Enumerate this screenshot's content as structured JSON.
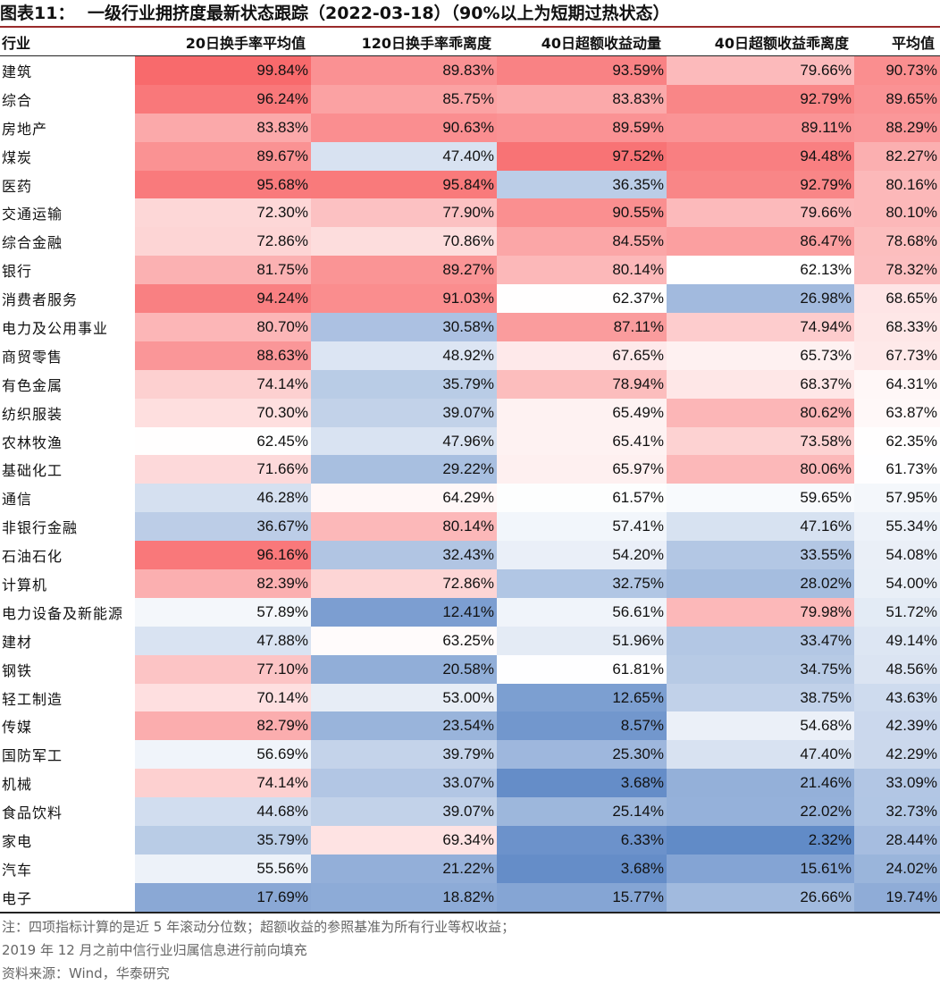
{
  "header": {
    "figure_label": "图表11：",
    "title": "一级行业拥挤度最新状态跟踪（2022-03-18）（90%以上为短期过热状态）"
  },
  "chart_data": {
    "type": "table",
    "title": "一级行业拥挤度最新状态跟踪（2022-03-18）（90%以上为短期过热状态）",
    "columns": [
      "行业",
      "20日换手率平均值",
      "120日换手率乖离度",
      "40日超额收益动量",
      "40日超额收益乖离度",
      "平均值"
    ],
    "rows": [
      [
        "建筑",
        99.84,
        89.83,
        93.59,
        79.66,
        90.73
      ],
      [
        "综合",
        96.24,
        85.75,
        83.83,
        92.79,
        89.65
      ],
      [
        "房地产",
        83.83,
        90.63,
        89.59,
        89.11,
        88.29
      ],
      [
        "煤炭",
        89.67,
        47.4,
        97.52,
        94.48,
        82.27
      ],
      [
        "医药",
        95.68,
        95.84,
        36.35,
        92.79,
        80.16
      ],
      [
        "交通运输",
        72.3,
        77.9,
        90.55,
        79.66,
        80.1
      ],
      [
        "综合金融",
        72.86,
        70.86,
        84.55,
        86.47,
        78.68
      ],
      [
        "银行",
        81.75,
        89.27,
        80.14,
        62.13,
        78.32
      ],
      [
        "消费者服务",
        94.24,
        91.03,
        62.37,
        26.98,
        68.65
      ],
      [
        "电力及公用事业",
        80.7,
        30.58,
        87.11,
        74.94,
        68.33
      ],
      [
        "商贸零售",
        88.63,
        48.92,
        67.65,
        65.73,
        67.73
      ],
      [
        "有色金属",
        74.14,
        35.79,
        78.94,
        68.37,
        64.31
      ],
      [
        "纺织服装",
        70.3,
        39.07,
        65.49,
        80.62,
        63.87
      ],
      [
        "农林牧渔",
        62.45,
        47.96,
        65.41,
        73.58,
        62.35
      ],
      [
        "基础化工",
        71.66,
        29.22,
        65.97,
        80.06,
        61.73
      ],
      [
        "通信",
        46.28,
        64.29,
        61.57,
        59.65,
        57.95
      ],
      [
        "非银行金融",
        36.67,
        80.14,
        57.41,
        47.16,
        55.34
      ],
      [
        "石油石化",
        96.16,
        32.43,
        54.2,
        33.55,
        54.08
      ],
      [
        "计算机",
        82.39,
        72.86,
        32.75,
        28.02,
        54.0
      ],
      [
        "电力设备及新能源",
        57.89,
        12.41,
        56.61,
        79.98,
        51.72
      ],
      [
        "建材",
        47.88,
        63.25,
        51.96,
        33.47,
        49.14
      ],
      [
        "钢铁",
        77.1,
        20.58,
        61.81,
        34.75,
        48.56
      ],
      [
        "轻工制造",
        70.14,
        53.0,
        12.65,
        38.75,
        43.63
      ],
      [
        "传媒",
        82.79,
        23.54,
        8.57,
        54.68,
        42.39
      ],
      [
        "国防军工",
        56.69,
        39.79,
        25.3,
        47.4,
        42.29
      ],
      [
        "机械",
        74.14,
        33.07,
        3.68,
        21.46,
        33.09
      ],
      [
        "食品饮料",
        44.68,
        39.07,
        25.14,
        22.02,
        32.73
      ],
      [
        "家电",
        35.79,
        69.34,
        6.33,
        2.32,
        28.44
      ],
      [
        "汽车",
        55.56,
        21.22,
        3.68,
        15.61,
        24.02
      ],
      [
        "电子",
        17.69,
        18.82,
        15.77,
        26.66,
        19.74
      ]
    ],
    "unit": "%",
    "color_scale": {
      "low": "#5b86c5",
      "mid": "#ffffff",
      "high": "#f8696b",
      "mid_value": 62.2
    }
  },
  "footer": {
    "note_line1": "注：四项指标计算的是近 5 年滚动分位数；超额收益的参照基准为所有行业等权收益；",
    "note_line2": "2019 年 12 月之前中信行业归属信息进行前向填充",
    "source": "资料来源：Wind，华泰研究"
  }
}
